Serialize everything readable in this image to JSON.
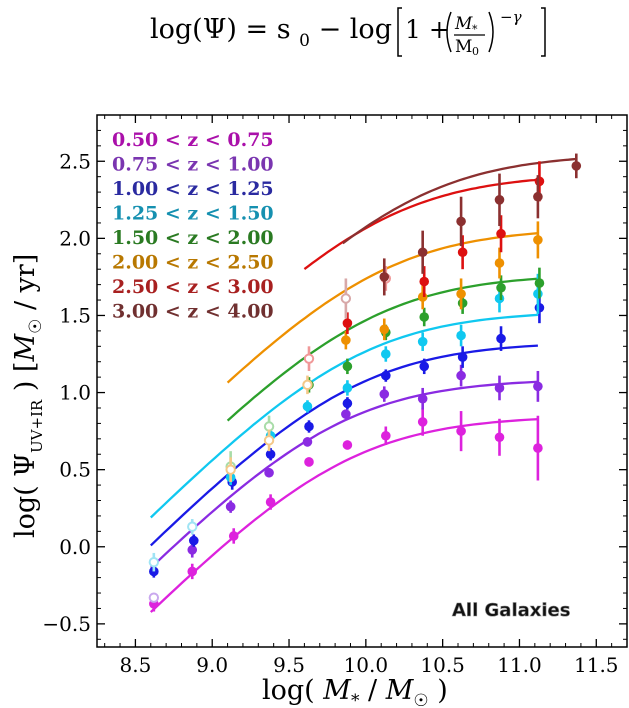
{
  "equation": {
    "lhs": "log(Ψ) = s",
    "lhs_sub": "0",
    "mid": " − log",
    "one_plus": "1 +",
    "frac_num": "M",
    "frac_num_sub": "*",
    "frac_den": "M",
    "frac_den_sub": "0",
    "exponent": "−γ"
  },
  "annotation": "All Galaxies",
  "chart_data": {
    "type": "scatter",
    "xlabel": "log( M* / M☉ )",
    "ylabel": "log( Ψ UV+IR ) [M☉ / yr]",
    "xlim": [
      8.25,
      11.7
    ],
    "ylim": [
      -0.65,
      2.8
    ],
    "xticks": [
      8.5,
      9.0,
      9.5,
      10.0,
      10.5,
      11.0,
      11.5
    ],
    "xtick_labels": [
      "8.5",
      "9.0",
      "9.5",
      "10.0",
      "10.5",
      "11.0",
      "11.5"
    ],
    "yticks": [
      -0.5,
      0.0,
      0.5,
      1.0,
      1.5,
      2.0,
      2.5
    ],
    "ytick_labels": [
      "−0.5",
      "0.0",
      "0.5",
      "1.0",
      "1.5",
      "2.0",
      "2.5"
    ],
    "grid": false,
    "legend_position": "top-left",
    "series": [
      {
        "name": "0.50 < z < 0.75",
        "color": "#dd22dd",
        "label_color": "#aa10aa",
        "open_color": "#e8a0e8",
        "fit": {
          "x0": 8.6,
          "x1": 11.12,
          "s0": 0.85,
          "logM0": 9.85,
          "gamma": 1.0
        },
        "points": [
          {
            "x": 8.62,
            "y": -0.37,
            "err": 0.05,
            "open": false
          },
          {
            "x": 8.87,
            "y": -0.16,
            "err": 0.05,
            "open": false
          },
          {
            "x": 9.14,
            "y": 0.07,
            "err": 0.05,
            "open": false
          },
          {
            "x": 9.38,
            "y": 0.29,
            "err": 0.05,
            "open": false
          },
          {
            "x": 9.63,
            "y": 0.55,
            "err": 0.03,
            "open": false
          },
          {
            "x": 9.88,
            "y": 0.66,
            "err": 0.03,
            "open": false
          },
          {
            "x": 10.13,
            "y": 0.72,
            "err": 0.06,
            "open": false
          },
          {
            "x": 10.37,
            "y": 0.81,
            "err": 0.09,
            "open": false
          },
          {
            "x": 10.62,
            "y": 0.75,
            "err": 0.13,
            "open": false
          },
          {
            "x": 10.87,
            "y": 0.71,
            "err": 0.12,
            "open": false
          },
          {
            "x": 11.12,
            "y": 0.64,
            "err": 0.21,
            "open": false
          }
        ]
      },
      {
        "name": "0.75 < z < 1.00",
        "color": "#8a2be2",
        "label_color": "#7a35b0",
        "open_color": "#c9a8ee",
        "fit": {
          "x0": 8.6,
          "x1": 11.12,
          "s0": 1.09,
          "logM0": 9.8,
          "gamma": 1.0
        },
        "points": [
          {
            "x": 8.62,
            "y": -0.33,
            "err": 0.03,
            "open": true
          },
          {
            "x": 8.87,
            "y": -0.02,
            "err": 0.05,
            "open": false
          },
          {
            "x": 9.12,
            "y": 0.26,
            "err": 0.04,
            "open": false
          },
          {
            "x": 9.37,
            "y": 0.48,
            "err": 0.03,
            "open": false
          },
          {
            "x": 9.62,
            "y": 0.68,
            "err": 0.03,
            "open": false
          },
          {
            "x": 9.87,
            "y": 0.86,
            "err": 0.03,
            "open": false
          },
          {
            "x": 10.12,
            "y": 0.99,
            "err": 0.05,
            "open": false
          },
          {
            "x": 10.37,
            "y": 0.96,
            "err": 0.07,
            "open": false
          },
          {
            "x": 10.62,
            "y": 1.11,
            "err": 0.07,
            "open": false
          },
          {
            "x": 10.87,
            "y": 1.03,
            "err": 0.08,
            "open": false
          },
          {
            "x": 11.12,
            "y": 1.04,
            "err": 0.1,
            "open": false
          }
        ]
      },
      {
        "name": "1.00 < z < 1.25",
        "color": "#1a1ae6",
        "label_color": "#2a2aa0",
        "open_color": "#a0a0f0",
        "fit": {
          "x0": 8.6,
          "x1": 11.12,
          "s0": 1.33,
          "logM0": 9.9,
          "gamma": 1.0
        },
        "points": [
          {
            "x": 8.62,
            "y": -0.16,
            "err": 0.04,
            "open": false
          },
          {
            "x": 8.88,
            "y": 0.04,
            "err": 0.04,
            "open": false
          },
          {
            "x": 9.13,
            "y": 0.42,
            "err": 0.05,
            "open": false
          },
          {
            "x": 9.38,
            "y": 0.6,
            "err": 0.04,
            "open": false
          },
          {
            "x": 9.63,
            "y": 0.78,
            "err": 0.04,
            "open": false
          },
          {
            "x": 9.88,
            "y": 0.93,
            "err": 0.04,
            "open": false
          },
          {
            "x": 10.13,
            "y": 1.11,
            "err": 0.04,
            "open": false
          },
          {
            "x": 10.38,
            "y": 1.17,
            "err": 0.05,
            "open": false
          },
          {
            "x": 10.63,
            "y": 1.23,
            "err": 0.07,
            "open": false
          },
          {
            "x": 10.88,
            "y": 1.35,
            "err": 0.08,
            "open": false
          },
          {
            "x": 11.13,
            "y": 1.55,
            "err": 0.1,
            "open": false
          }
        ]
      },
      {
        "name": "1.25 < z < 1.50",
        "color": "#10c8f0",
        "label_color": "#1590b0",
        "open_color": "#a0e4f4",
        "fit": {
          "x0": 8.6,
          "x1": 11.12,
          "s0": 1.53,
          "logM0": 9.92,
          "gamma": 1.0
        },
        "points": [
          {
            "x": 8.62,
            "y": -0.1,
            "err": 0.06,
            "open": true
          },
          {
            "x": 8.87,
            "y": 0.13,
            "err": 0.05,
            "open": true
          },
          {
            "x": 9.12,
            "y": 0.45,
            "err": 0.05,
            "open": false
          },
          {
            "x": 9.38,
            "y": 0.72,
            "err": 0.05,
            "open": false
          },
          {
            "x": 9.62,
            "y": 0.91,
            "err": 0.04,
            "open": false
          },
          {
            "x": 9.88,
            "y": 1.03,
            "err": 0.05,
            "open": false
          },
          {
            "x": 10.13,
            "y": 1.25,
            "err": 0.05,
            "open": false
          },
          {
            "x": 10.37,
            "y": 1.33,
            "err": 0.06,
            "open": false
          },
          {
            "x": 10.62,
            "y": 1.37,
            "err": 0.07,
            "open": false
          },
          {
            "x": 10.87,
            "y": 1.61,
            "err": 0.09,
            "open": false
          },
          {
            "x": 11.12,
            "y": 1.64,
            "err": 0.13,
            "open": false
          }
        ]
      },
      {
        "name": "1.50 < z < 2.00",
        "color": "#2ca02c",
        "label_color": "#2a7a22",
        "open_color": "#a8dca8",
        "fit": {
          "x0": 9.1,
          "x1": 11.12,
          "s0": 1.77,
          "logM0": 10.0,
          "gamma": 1.0
        },
        "points": [
          {
            "x": 9.12,
            "y": 0.52,
            "err": 0.1,
            "open": true
          },
          {
            "x": 9.37,
            "y": 0.78,
            "err": 0.07,
            "open": true
          },
          {
            "x": 9.63,
            "y": 1.05,
            "err": 0.05,
            "open": false
          },
          {
            "x": 9.88,
            "y": 1.17,
            "err": 0.05,
            "open": false
          },
          {
            "x": 10.13,
            "y": 1.39,
            "err": 0.05,
            "open": false
          },
          {
            "x": 10.38,
            "y": 1.49,
            "err": 0.06,
            "open": false
          },
          {
            "x": 10.63,
            "y": 1.58,
            "err": 0.07,
            "open": false
          },
          {
            "x": 10.88,
            "y": 1.68,
            "err": 0.08,
            "open": false
          },
          {
            "x": 11.13,
            "y": 1.71,
            "err": 0.1,
            "open": false
          }
        ]
      },
      {
        "name": "2.00 < z < 2.50",
        "color": "#ee9000",
        "label_color": "#b87800",
        "open_color": "#f4c888",
        "fit": {
          "x0": 9.1,
          "x1": 11.12,
          "s0": 2.07,
          "logM0": 10.06,
          "gamma": 1.0
        },
        "points": [
          {
            "x": 9.12,
            "y": 0.5,
            "err": 0.08,
            "open": true
          },
          {
            "x": 9.37,
            "y": 0.69,
            "err": 0.07,
            "open": true
          },
          {
            "x": 9.62,
            "y": 1.05,
            "err": 0.06,
            "open": true
          },
          {
            "x": 9.87,
            "y": 1.34,
            "err": 0.06,
            "open": false
          },
          {
            "x": 10.12,
            "y": 1.41,
            "err": 0.07,
            "open": false
          },
          {
            "x": 10.37,
            "y": 1.62,
            "err": 0.08,
            "open": false
          },
          {
            "x": 10.62,
            "y": 1.64,
            "err": 0.1,
            "open": false
          },
          {
            "x": 10.87,
            "y": 1.84,
            "err": 0.1,
            "open": false
          },
          {
            "x": 11.12,
            "y": 1.99,
            "err": 0.12,
            "open": false
          }
        ]
      },
      {
        "name": "2.50 < z < 3.00",
        "color": "#dd1010",
        "label_color": "#a82020",
        "open_color": "#f09898",
        "fit": {
          "x0": 9.6,
          "x1": 11.12,
          "s0": 2.42,
          "logM0": 10.1,
          "gamma": 1.0
        },
        "points": [
          {
            "x": 9.63,
            "y": 1.22,
            "err": 0.08,
            "open": true
          },
          {
            "x": 9.88,
            "y": 1.45,
            "err": 0.07,
            "open": false
          },
          {
            "x": 10.13,
            "y": 1.74,
            "err": 0.08,
            "open": true
          },
          {
            "x": 10.38,
            "y": 1.72,
            "err": 0.1,
            "open": false
          },
          {
            "x": 10.63,
            "y": 1.91,
            "err": 0.11,
            "open": false
          },
          {
            "x": 10.88,
            "y": 2.03,
            "err": 0.12,
            "open": false
          },
          {
            "x": 11.13,
            "y": 2.37,
            "err": 0.13,
            "open": false
          }
        ]
      },
      {
        "name": "3.00 < z < 4.00",
        "color": "#8b3030",
        "label_color": "#703030",
        "open_color": "#d8a8a8",
        "fit": {
          "x0": 9.85,
          "x1": 11.37,
          "s0": 2.55,
          "logM0": 10.3,
          "gamma": 1.0
        },
        "points": [
          {
            "x": 9.87,
            "y": 1.61,
            "err": 0.13,
            "open": true
          },
          {
            "x": 10.12,
            "y": 1.75,
            "err": 0.12,
            "open": false
          },
          {
            "x": 10.37,
            "y": 1.91,
            "err": 0.14,
            "open": false
          },
          {
            "x": 10.62,
            "y": 2.11,
            "err": 0.16,
            "open": false
          },
          {
            "x": 10.87,
            "y": 2.25,
            "err": 0.17,
            "open": false
          },
          {
            "x": 11.12,
            "y": 2.27,
            "err": 0.14,
            "open": false
          },
          {
            "x": 11.37,
            "y": 2.47,
            "err": 0.08,
            "open": false
          }
        ]
      }
    ]
  }
}
